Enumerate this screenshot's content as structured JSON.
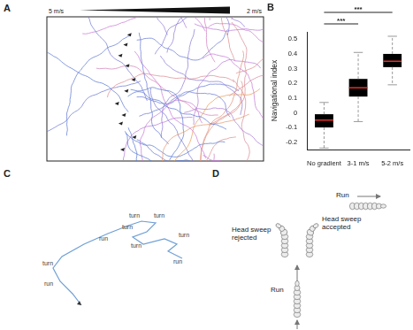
{
  "panels": {
    "A": {
      "label": "A",
      "left_text": "5 m/s",
      "right_text": "2 m/s"
    },
    "C": {
      "label": "C",
      "annotations": [
        "turn",
        "turn",
        "turn",
        "run",
        "turn",
        "turn",
        "run",
        "turn",
        "run"
      ]
    },
    "D": {
      "label": "D",
      "run_top": "Run",
      "head_sweep_accepted": "Head sweep accepted",
      "head_sweep_rejected": "Head sweep rejected",
      "run_bottom": "Run"
    }
  },
  "chart_data": {
    "label": "B",
    "type": "box",
    "ylabel": "Navigational index",
    "categories": [
      "No gradient",
      "3-1 m/s",
      "5-2 m/s"
    ],
    "boxes": [
      {
        "min": -0.24,
        "q1": -0.1,
        "median": -0.05,
        "q3": -0.01,
        "max": 0.07
      },
      {
        "min": -0.06,
        "q1": 0.11,
        "median": 0.17,
        "q3": 0.23,
        "max": 0.41
      },
      {
        "min": 0.19,
        "q1": 0.31,
        "median": 0.35,
        "q3": 0.4,
        "max": 0.52
      }
    ],
    "color": "#000000",
    "ylim": [
      -0.25,
      0.55
    ],
    "yticks": [
      -0.2,
      -0.1,
      0,
      0.1,
      0.2,
      0.3,
      0.4,
      0.5
    ],
    "grid": false,
    "significance": [
      {
        "pair": [
          "No gradient",
          "3-1 m/s"
        ],
        "label": "***"
      },
      {
        "pair": [
          "No gradient",
          "5-2 m/s"
        ],
        "label": "***"
      }
    ]
  }
}
